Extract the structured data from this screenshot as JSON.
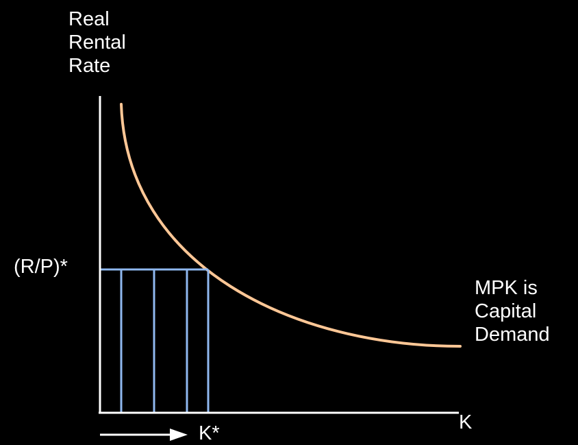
{
  "diagram": {
    "y_axis_label": [
      "Real",
      "Rental",
      "Rate"
    ],
    "x_axis_label": "K",
    "y_value_label": "(R/P)*",
    "x_value_label": "K*",
    "curve_label": [
      "MPK is",
      "Capital",
      "Demand"
    ],
    "colors": {
      "background": "#000000",
      "axes": "#ffffff",
      "demand_curve": "#FFC796",
      "capital_bars": "#8FB8F0",
      "text": "#ffffff"
    }
  }
}
